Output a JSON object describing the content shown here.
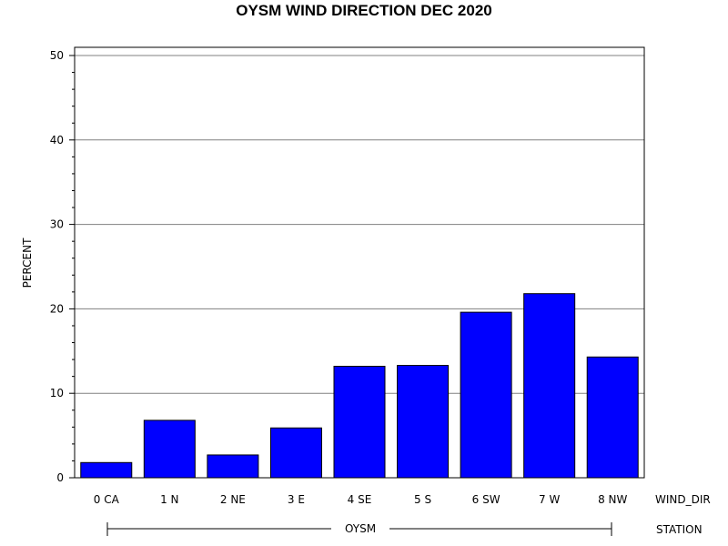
{
  "chart_data": {
    "type": "bar",
    "title": "OYSM WIND DIRECTION DEC 2020",
    "ylabel": "PERCENT",
    "xlabel": "WIND_DIR",
    "group_axis_label": "STATION",
    "group_label": "OYSM",
    "categories": [
      "0 CA",
      "1 N",
      "2 NE",
      "3 E",
      "4 SE",
      "5 S",
      "6 SW",
      "7 W",
      "8 NW"
    ],
    "values": [
      1.8,
      6.8,
      2.7,
      5.9,
      13.2,
      13.3,
      19.6,
      21.8,
      14.3
    ],
    "ylim": [
      0,
      50
    ],
    "yticks": [
      0,
      10,
      20,
      30,
      40,
      50
    ],
    "grid": true,
    "bar_color": "#0000ff",
    "bar_edge_color": "#000000"
  }
}
